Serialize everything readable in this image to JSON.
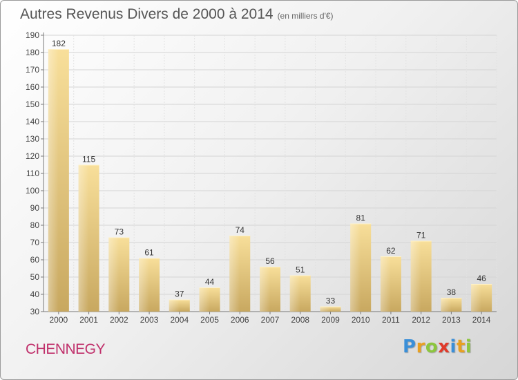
{
  "header": {
    "title": "Autres Revenus Divers de 2000 à 2014",
    "subtitle": "(en milliers d'€)"
  },
  "footer": {
    "commune": "CHENNEGY",
    "logo": {
      "letters": [
        "P",
        "r",
        "o",
        "x",
        "i",
        "t",
        "i"
      ],
      "colors": [
        "#3a8fd8",
        "#e8a020",
        "#8cc63e",
        "#e03a2a",
        "#3a8fd8",
        "#e8a020",
        "#8cc63e"
      ]
    }
  },
  "chart_data": {
    "type": "bar",
    "categories": [
      "2000",
      "2001",
      "2002",
      "2003",
      "2004",
      "2005",
      "2006",
      "2007",
      "2008",
      "2009",
      "2010",
      "2011",
      "2012",
      "2013",
      "2014"
    ],
    "values": [
      182,
      115,
      73,
      61,
      37,
      44,
      74,
      56,
      51,
      33,
      81,
      62,
      71,
      38,
      46
    ],
    "data_labels": [
      "182",
      "115",
      "73",
      "61",
      "37",
      "44",
      "74",
      "56",
      "51",
      "33",
      "81",
      "62",
      "71",
      "38",
      "46"
    ],
    "title": "Autres Revenus Divers de 2000 à 2014",
    "subtitle": "(en milliers d'€)",
    "xlabel": "",
    "ylabel": "",
    "ylim": [
      30,
      190
    ],
    "yticks": [
      30,
      40,
      50,
      60,
      70,
      80,
      90,
      100,
      110,
      120,
      130,
      140,
      150,
      160,
      170,
      180,
      190
    ],
    "grid": true,
    "legend": "none",
    "bar_color": "#e8c878"
  }
}
